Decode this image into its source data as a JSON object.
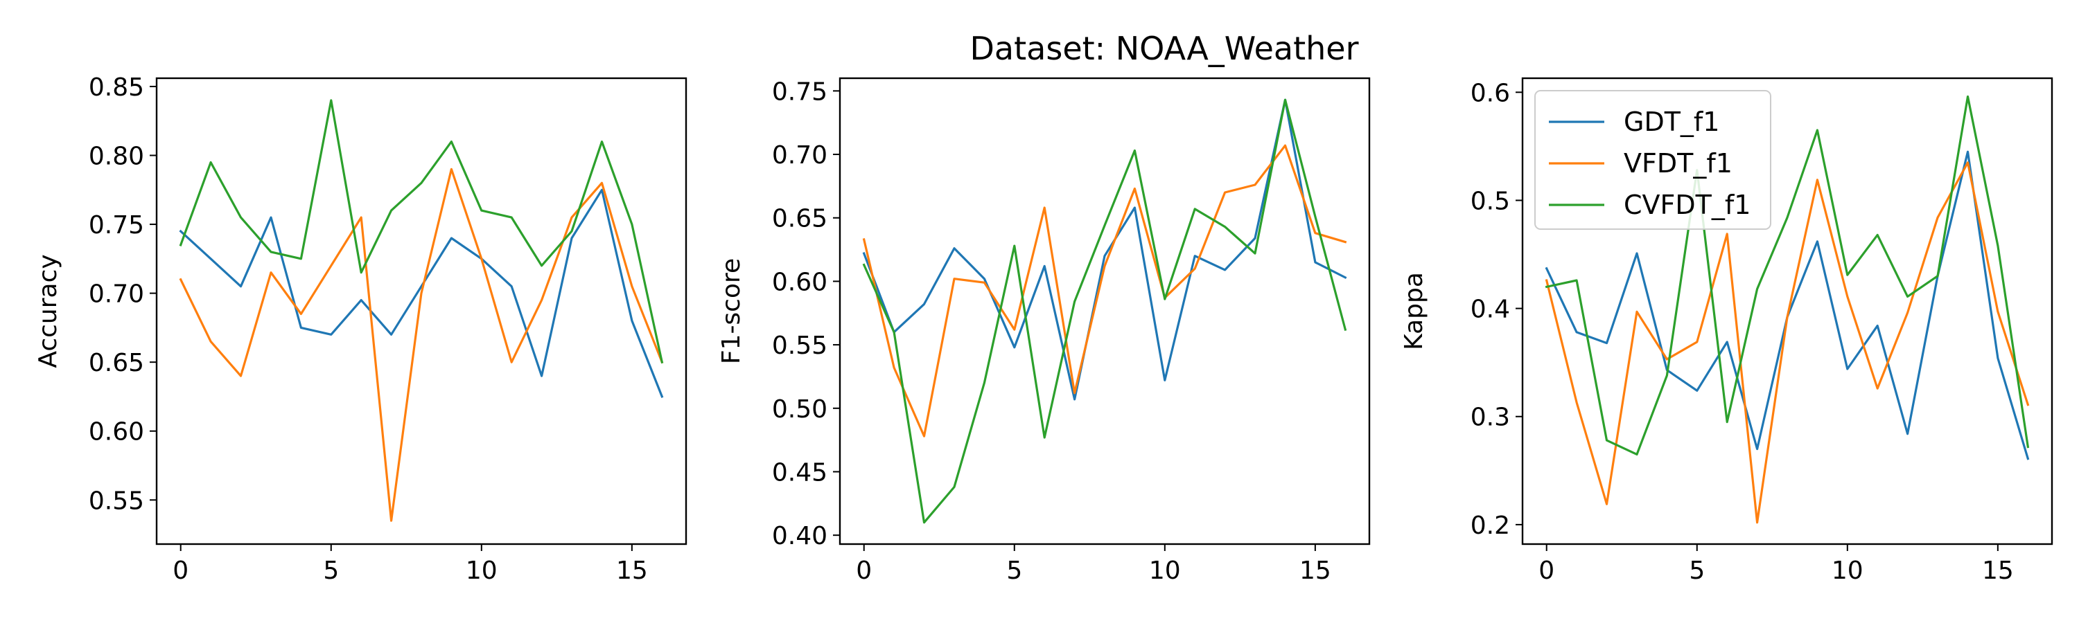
{
  "figure": {
    "title": "Dataset: NOAA_Weather"
  },
  "chart_data": [
    {
      "type": "line",
      "title": "",
      "xlabel": "",
      "ylabel": "Accuracy",
      "xlim": [
        -0.8,
        16.8
      ],
      "ylim": [
        0.518,
        0.856
      ],
      "xticks": [
        0,
        5,
        10,
        15
      ],
      "yticks": [
        0.55,
        0.6,
        0.65,
        0.7,
        0.75,
        0.8,
        0.85
      ],
      "tick_decimals": 2,
      "grid": false,
      "legend": null,
      "x": [
        0,
        1,
        2,
        3,
        4,
        5,
        6,
        7,
        8,
        9,
        10,
        11,
        12,
        13,
        14,
        15,
        16
      ],
      "series": [
        {
          "color": "#1f77b4",
          "values": [
            0.745,
            0.725,
            0.705,
            0.755,
            0.675,
            0.67,
            0.695,
            0.67,
            0.705,
            0.74,
            0.725,
            0.705,
            0.64,
            0.74,
            0.775,
            0.68,
            0.625
          ]
        },
        {
          "color": "#ff7f0e",
          "values": [
            0.71,
            0.665,
            0.64,
            0.715,
            0.685,
            0.72,
            0.755,
            0.535,
            0.7,
            0.79,
            0.725,
            0.65,
            0.695,
            0.755,
            0.78,
            0.705,
            0.65
          ]
        },
        {
          "color": "#2ca02c",
          "values": [
            0.735,
            0.795,
            0.755,
            0.73,
            0.725,
            0.84,
            0.715,
            0.76,
            0.78,
            0.81,
            0.76,
            0.755,
            0.72,
            0.745,
            0.81,
            0.75,
            0.65
          ]
        }
      ]
    },
    {
      "type": "line",
      "title": "",
      "xlabel": "",
      "ylabel": "F1-score",
      "xlim": [
        -0.8,
        16.8
      ],
      "ylim": [
        0.393,
        0.76
      ],
      "xticks": [
        0,
        5,
        10,
        15
      ],
      "yticks": [
        0.4,
        0.45,
        0.5,
        0.55,
        0.6,
        0.65,
        0.7,
        0.75
      ],
      "tick_decimals": 2,
      "grid": false,
      "legend": null,
      "x": [
        0,
        1,
        2,
        3,
        4,
        5,
        6,
        7,
        8,
        9,
        10,
        11,
        12,
        13,
        14,
        15,
        16
      ],
      "series": [
        {
          "color": "#1f77b4",
          "values": [
            0.622,
            0.56,
            0.582,
            0.626,
            0.602,
            0.548,
            0.612,
            0.507,
            0.62,
            0.658,
            0.522,
            0.62,
            0.609,
            0.634,
            0.743,
            0.615,
            0.603
          ]
        },
        {
          "color": "#ff7f0e",
          "values": [
            0.633,
            0.532,
            0.478,
            0.602,
            0.599,
            0.562,
            0.658,
            0.512,
            0.612,
            0.673,
            0.587,
            0.61,
            0.67,
            0.676,
            0.707,
            0.638,
            0.631
          ]
        },
        {
          "color": "#2ca02c",
          "values": [
            0.613,
            0.56,
            0.41,
            0.438,
            0.52,
            0.628,
            0.477,
            0.584,
            0.644,
            0.703,
            0.586,
            0.657,
            0.643,
            0.622,
            0.743,
            0.651,
            0.562
          ]
        }
      ]
    },
    {
      "type": "line",
      "title": "",
      "xlabel": "",
      "ylabel": "Kappa",
      "xlim": [
        -0.8,
        16.8
      ],
      "ylim": [
        0.182,
        0.613
      ],
      "xticks": [
        0,
        5,
        10,
        15
      ],
      "yticks": [
        0.2,
        0.3,
        0.4,
        0.5,
        0.6
      ],
      "tick_decimals": 1,
      "grid": false,
      "legend": {
        "placement": "upper-left",
        "entries": [
          "GDT_f1",
          "VFDT_f1",
          "CVFDT_f1"
        ]
      },
      "x": [
        0,
        1,
        2,
        3,
        4,
        5,
        6,
        7,
        8,
        9,
        10,
        11,
        12,
        13,
        14,
        15,
        16
      ],
      "series": [
        {
          "name": "GDT_f1",
          "color": "#1f77b4",
          "values": [
            0.437,
            0.378,
            0.368,
            0.451,
            0.343,
            0.324,
            0.369,
            0.27,
            0.392,
            0.462,
            0.344,
            0.384,
            0.284,
            0.43,
            0.545,
            0.354,
            0.261
          ]
        },
        {
          "name": "VFDT_f1",
          "color": "#ff7f0e",
          "values": [
            0.426,
            0.313,
            0.219,
            0.397,
            0.353,
            0.369,
            0.469,
            0.202,
            0.392,
            0.519,
            0.411,
            0.326,
            0.396,
            0.484,
            0.535,
            0.397,
            0.311
          ]
        },
        {
          "name": "CVFDT_f1",
          "color": "#2ca02c",
          "values": [
            0.42,
            0.426,
            0.278,
            0.265,
            0.338,
            0.528,
            0.295,
            0.418,
            0.484,
            0.565,
            0.431,
            0.468,
            0.411,
            0.43,
            0.596,
            0.458,
            0.272
          ]
        }
      ]
    }
  ]
}
